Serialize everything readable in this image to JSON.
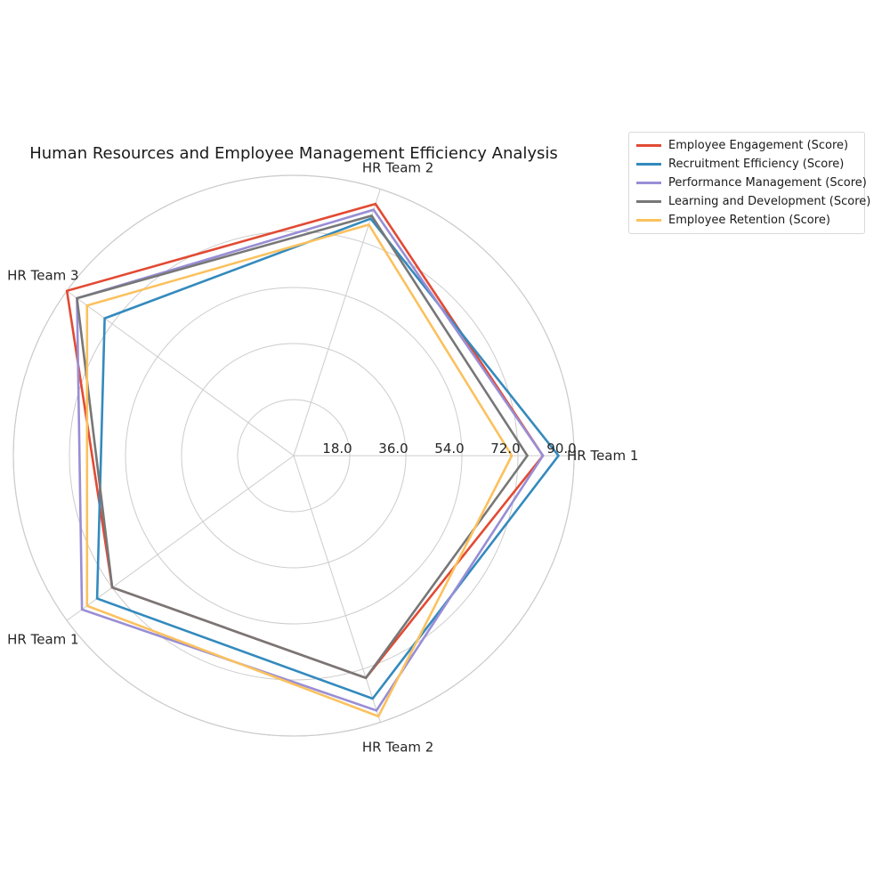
{
  "chart_data": {
    "type": "radar",
    "title": "Human Resources and Employee Management Efficiency Analysis",
    "axes": [
      "HR Team 1",
      "HR Team 2",
      "HR Team 3",
      "HR Team 1",
      "HR Team 2"
    ],
    "rticks": [
      18.0,
      36.0,
      54.0,
      72.0,
      90.0
    ],
    "rtick_labels": [
      "18.0",
      "36.0",
      "54.0",
      "72.0",
      "90.0"
    ],
    "rlim": [
      0,
      90
    ],
    "grid": true,
    "legend_position": "upper right, outside plot",
    "series": [
      {
        "name": "Employee Engagement (Score)",
        "color": "#E24A33",
        "values": [
          80,
          85,
          90,
          72,
          75
        ]
      },
      {
        "name": "Recruitment Efficiency (Score)",
        "color": "#348ABD",
        "values": [
          85,
          80,
          75,
          78,
          82
        ]
      },
      {
        "name": "Performance Management (Score)",
        "color": "#988ED5",
        "values": [
          80,
          83,
          86,
          84,
          86
        ]
      },
      {
        "name": "Learning and Development (Score)",
        "color": "#777777",
        "values": [
          75,
          81,
          86,
          72,
          75
        ]
      },
      {
        "name": "Employee Retention (Score)",
        "color": "#FBC15E",
        "values": [
          70,
          78,
          82,
          82,
          88
        ]
      }
    ]
  }
}
